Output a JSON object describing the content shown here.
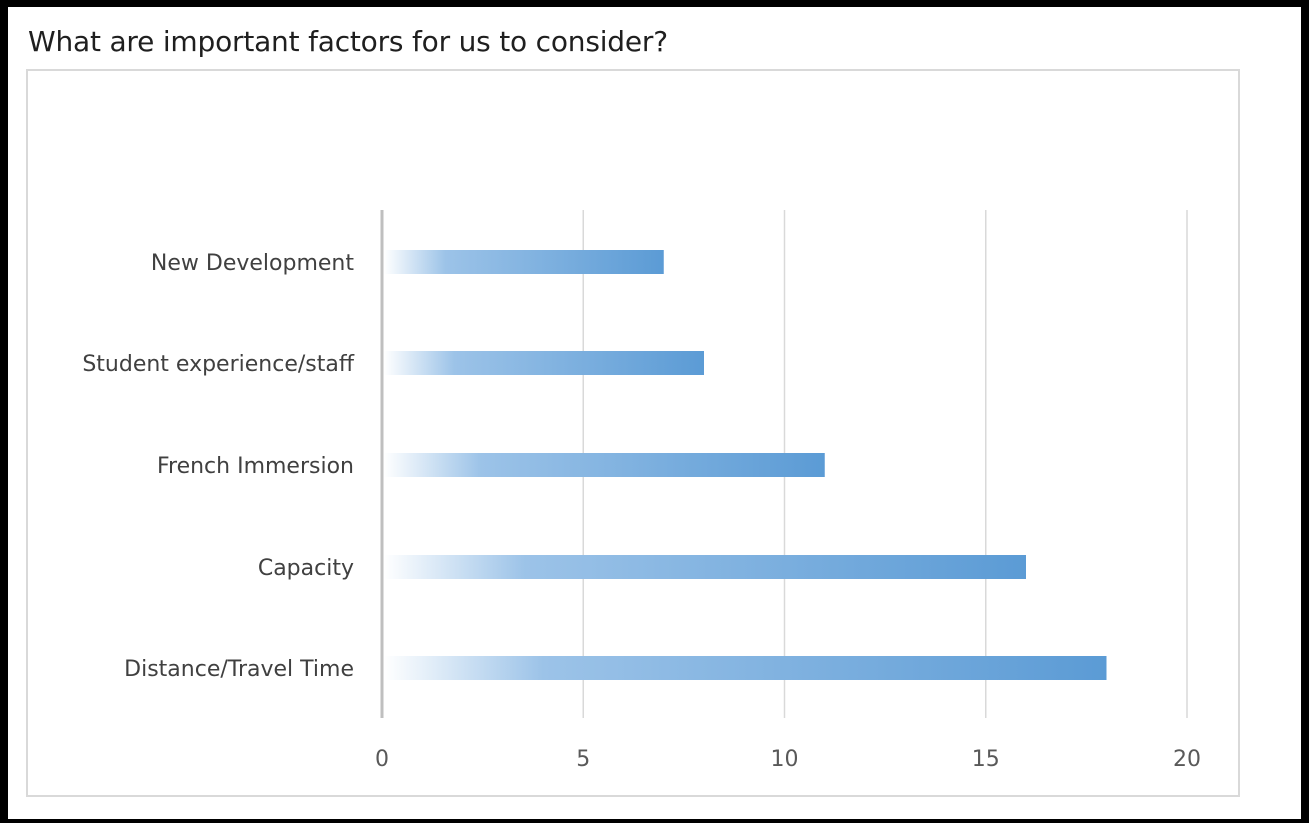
{
  "title": "What are important factors for us to consider?",
  "chart_data": {
    "type": "bar",
    "orientation": "horizontal",
    "categories": [
      "New Development",
      "Student experience/staff",
      "French Immersion",
      "Capacity",
      "Distance/Travel Time"
    ],
    "values": [
      7,
      8,
      11,
      16,
      18
    ],
    "xlim": [
      0,
      20
    ],
    "xticks": [
      0,
      5,
      10,
      15,
      20
    ],
    "grid": true,
    "bar_color": "#5b9bd5",
    "bar_fill": "gradient"
  }
}
